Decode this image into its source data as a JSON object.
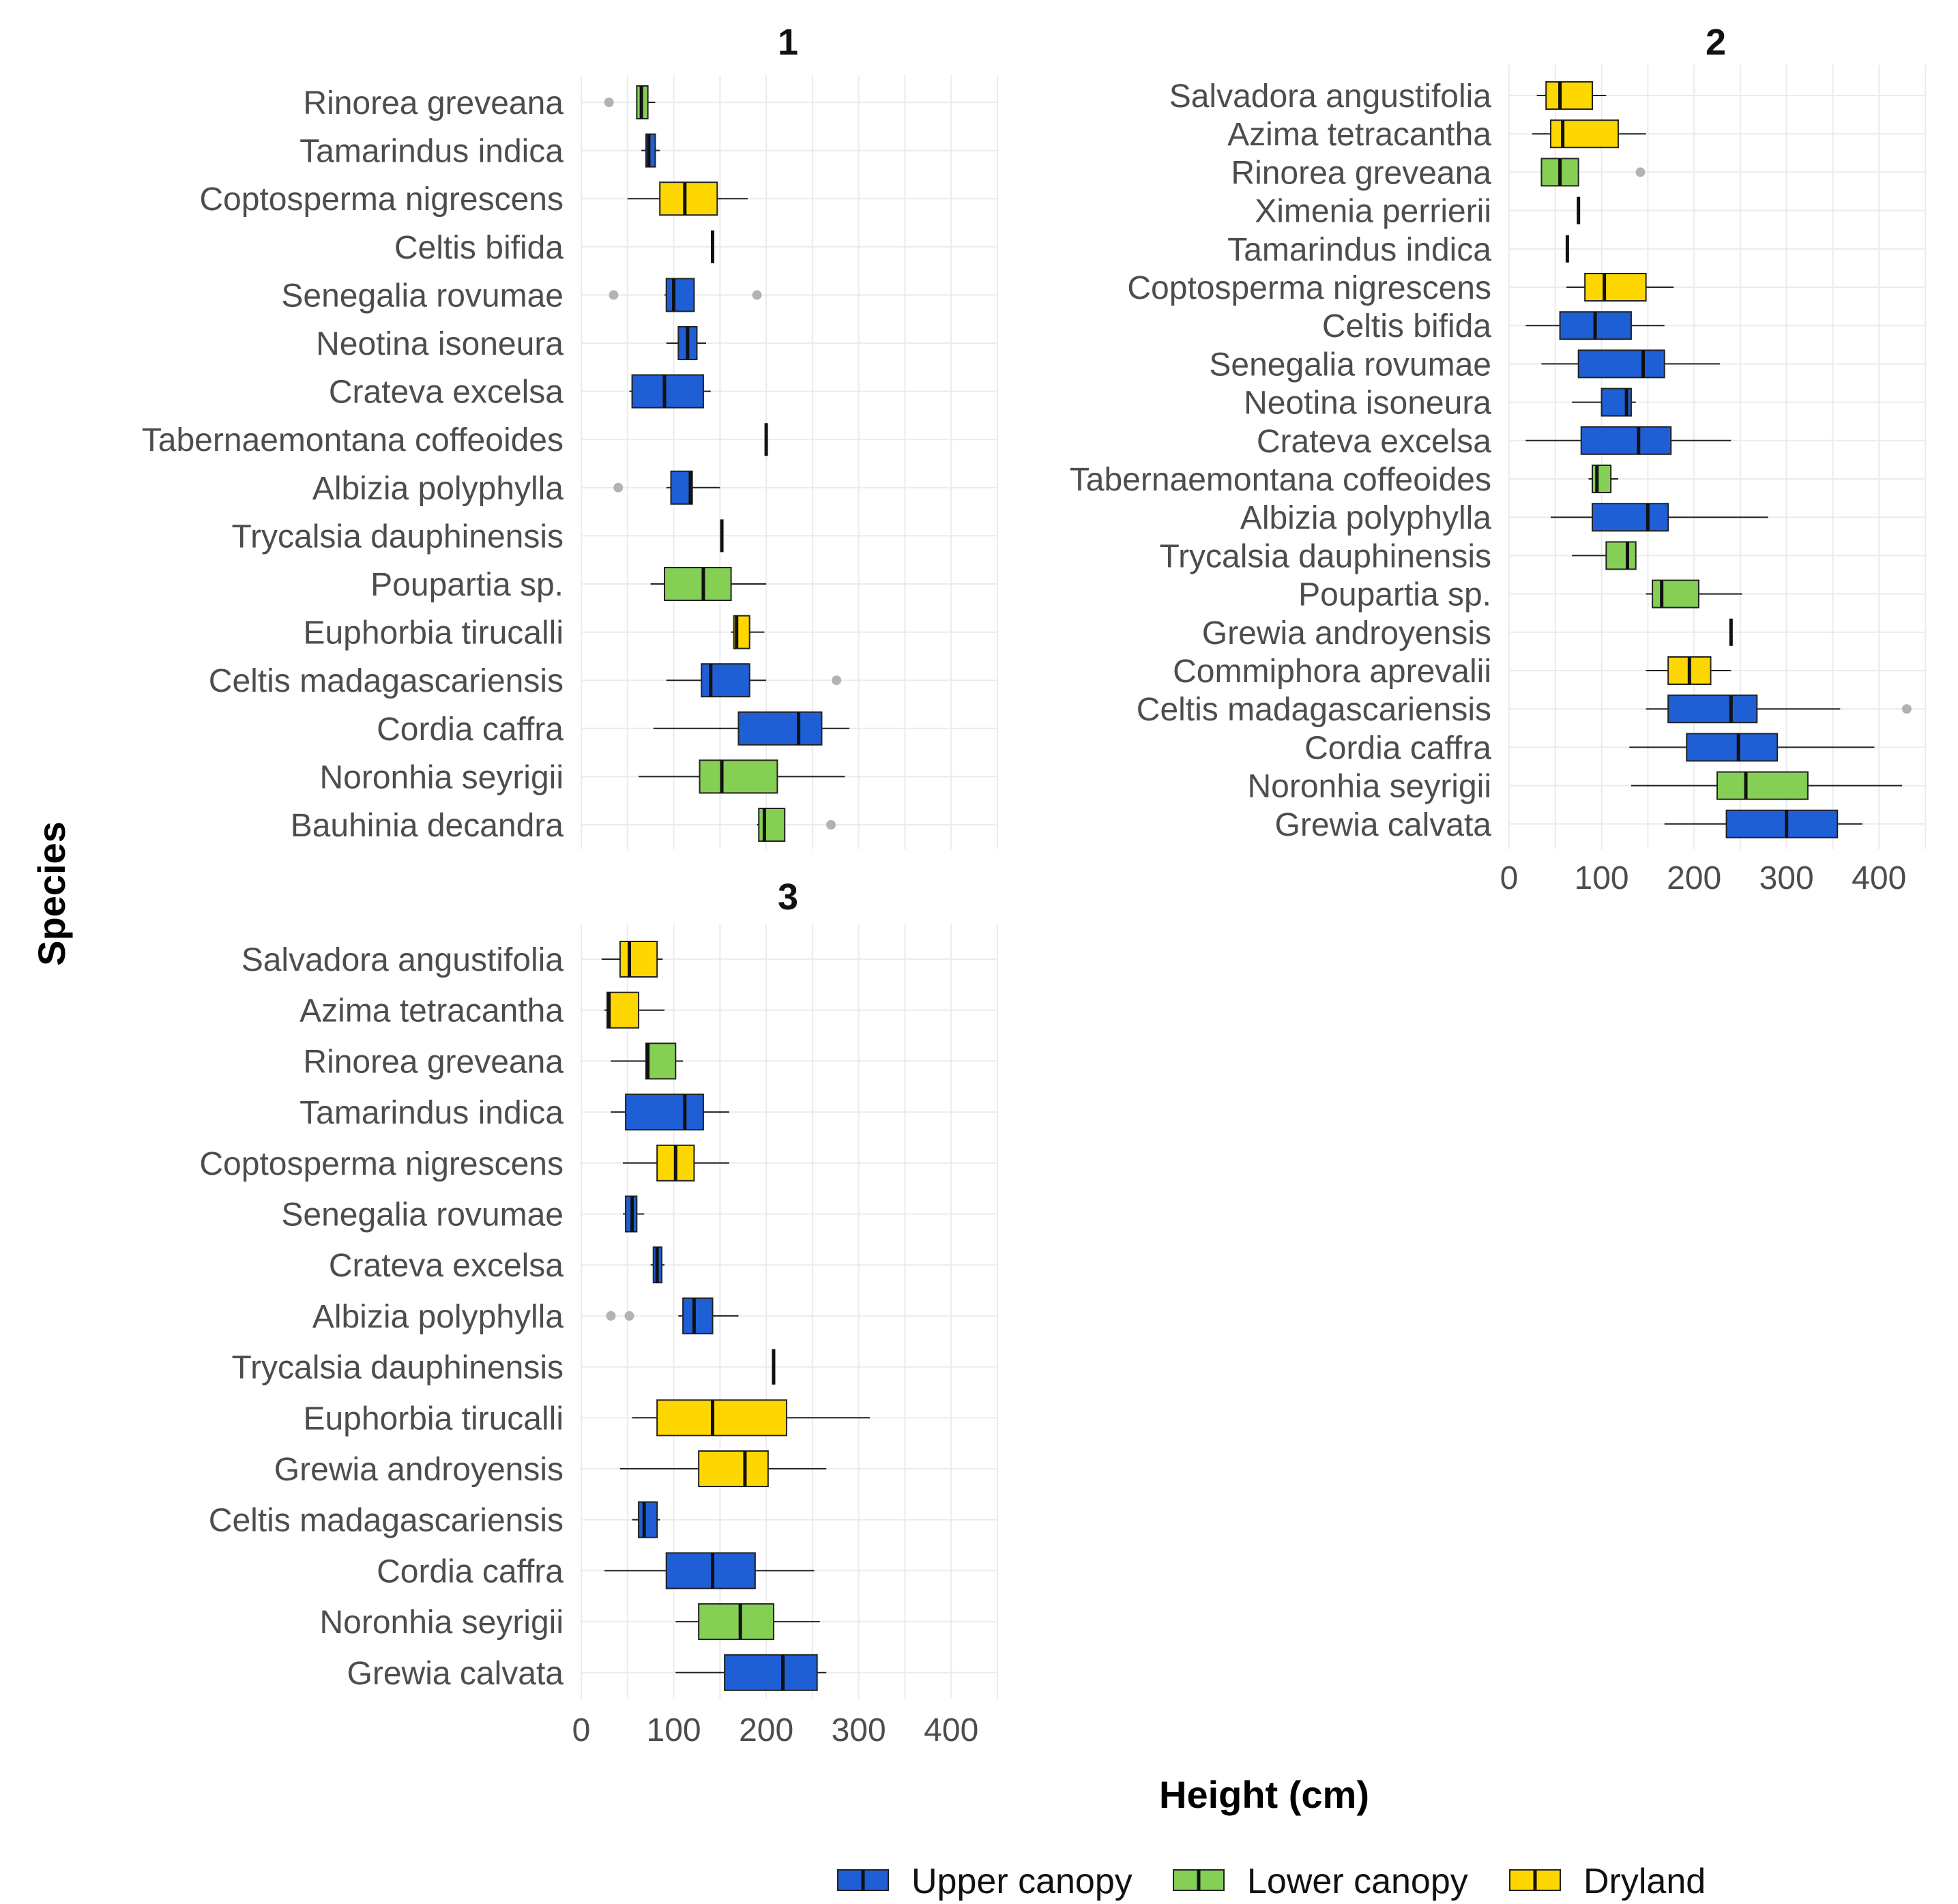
{
  "chart_data": {
    "type": "boxplot",
    "xlabel": "Height (cm)",
    "ylabel": "Species",
    "xlim": [
      0,
      450
    ],
    "x_ticks": [
      0,
      100,
      200,
      300,
      400
    ],
    "legend": {
      "position": "bottom",
      "items": [
        {
          "name": "Upper canopy",
          "color": "#1e5fd6"
        },
        {
          "name": "Lower canopy",
          "color": "#86cf55"
        },
        {
          "name": "Dryland",
          "color": "#fed700"
        }
      ]
    },
    "panels": [
      {
        "title": "1",
        "show_x_ticks": false,
        "series": [
          {
            "species": "Rinorea greveana",
            "group": "Lower canopy",
            "lw": 60,
            "q1": 60,
            "median": 65,
            "q3": 72,
            "uw": 80,
            "outliers": [
              30
            ]
          },
          {
            "species": "Tamarindus indica",
            "group": "Upper canopy",
            "lw": 65,
            "q1": 70,
            "median": 73,
            "q3": 80,
            "uw": 85,
            "outliers": []
          },
          {
            "species": "Coptosperma nigrescens",
            "group": "Dryland",
            "lw": 50,
            "q1": 85,
            "median": 112,
            "q3": 147,
            "uw": 180,
            "outliers": []
          },
          {
            "species": "Celtis bifida",
            "group": "Upper canopy",
            "lw": 142,
            "q1": 142,
            "median": 142,
            "q3": 142,
            "uw": 142,
            "outliers": []
          },
          {
            "species": "Senegalia rovumae",
            "group": "Upper canopy",
            "lw": 90,
            "q1": 92,
            "median": 100,
            "q3": 122,
            "uw": 122,
            "outliers": [
              35,
              190
            ]
          },
          {
            "species": "Neotina isoneura",
            "group": "Upper canopy",
            "lw": 92,
            "q1": 105,
            "median": 115,
            "q3": 125,
            "uw": 135,
            "outliers": []
          },
          {
            "species": "Crateva excelsa",
            "group": "Upper canopy",
            "lw": 52,
            "q1": 55,
            "median": 90,
            "q3": 132,
            "uw": 140,
            "outliers": []
          },
          {
            "species": "Tabernaemontana coffeoides",
            "group": "Upper canopy",
            "lw": 200,
            "q1": 200,
            "median": 200,
            "q3": 200,
            "uw": 200,
            "outliers": []
          },
          {
            "species": "Albizia polyphylla",
            "group": "Upper canopy",
            "lw": 92,
            "q1": 97,
            "median": 118,
            "q3": 120,
            "uw": 150,
            "outliers": [
              40
            ]
          },
          {
            "species": "Trycalsia dauphinensis",
            "group": "Upper canopy",
            "lw": 152,
            "q1": 152,
            "median": 152,
            "q3": 152,
            "uw": 152,
            "outliers": []
          },
          {
            "species": "Poupartia sp.",
            "group": "Lower canopy",
            "lw": 75,
            "q1": 90,
            "median": 132,
            "q3": 162,
            "uw": 200,
            "outliers": []
          },
          {
            "species": "Euphorbia tirucalli",
            "group": "Dryland",
            "lw": 162,
            "q1": 165,
            "median": 168,
            "q3": 182,
            "uw": 198,
            "outliers": []
          },
          {
            "species": "Celtis madagascariensis",
            "group": "Upper canopy",
            "lw": 92,
            "q1": 130,
            "median": 140,
            "q3": 182,
            "uw": 200,
            "outliers": [
              276
            ]
          },
          {
            "species": "Cordia caffra",
            "group": "Upper canopy",
            "lw": 78,
            "q1": 170,
            "median": 235,
            "q3": 260,
            "uw": 290,
            "outliers": []
          },
          {
            "species": "Noronhia seyrigii",
            "group": "Lower canopy",
            "lw": 62,
            "q1": 128,
            "median": 152,
            "q3": 212,
            "uw": 285,
            "outliers": []
          },
          {
            "species": "Bauhinia decandra",
            "group": "Lower canopy",
            "lw": 190,
            "q1": 192,
            "median": 198,
            "q3": 220,
            "uw": 220,
            "outliers": [
              270
            ]
          }
        ]
      },
      {
        "title": "2",
        "show_x_ticks": true,
        "series": [
          {
            "species": "Salvadora angustifolia",
            "group": "Dryland",
            "lw": 30,
            "q1": 40,
            "median": 55,
            "q3": 90,
            "uw": 105,
            "outliers": []
          },
          {
            "species": "Azima tetracantha",
            "group": "Dryland",
            "lw": 25,
            "q1": 45,
            "median": 58,
            "q3": 118,
            "uw": 148,
            "outliers": []
          },
          {
            "species": "Rinorea greveana",
            "group": "Lower canopy",
            "lw": 35,
            "q1": 35,
            "median": 55,
            "q3": 75,
            "uw": 75,
            "outliers": [
              142
            ]
          },
          {
            "species": "Ximenia perrierii",
            "group": "Dryland",
            "lw": 75,
            "q1": 75,
            "median": 75,
            "q3": 75,
            "uw": 75,
            "outliers": []
          },
          {
            "species": "Tamarindus indica",
            "group": "Upper canopy",
            "lw": 63,
            "q1": 63,
            "median": 63,
            "q3": 63,
            "uw": 63,
            "outliers": []
          },
          {
            "species": "Coptosperma nigrescens",
            "group": "Dryland",
            "lw": 62,
            "q1": 82,
            "median": 103,
            "q3": 148,
            "uw": 178,
            "outliers": []
          },
          {
            "species": "Celtis bifida",
            "group": "Upper canopy",
            "lw": 18,
            "q1": 55,
            "median": 93,
            "q3": 132,
            "uw": 168,
            "outliers": []
          },
          {
            "species": "Senegalia rovumae",
            "group": "Upper canopy",
            "lw": 35,
            "q1": 75,
            "median": 145,
            "q3": 168,
            "uw": 228,
            "outliers": []
          },
          {
            "species": "Neotina isoneura",
            "group": "Upper canopy",
            "lw": 68,
            "q1": 100,
            "median": 127,
            "q3": 132,
            "uw": 137,
            "outliers": []
          },
          {
            "species": "Crateva excelsa",
            "group": "Upper canopy",
            "lw": 18,
            "q1": 78,
            "median": 140,
            "q3": 175,
            "uw": 240,
            "outliers": []
          },
          {
            "species": "Tabernaemontana coffeoides",
            "group": "Lower canopy",
            "lw": 86,
            "q1": 90,
            "median": 95,
            "q3": 110,
            "uw": 118,
            "outliers": []
          },
          {
            "species": "Albizia polyphylla",
            "group": "Upper canopy",
            "lw": 45,
            "q1": 90,
            "median": 150,
            "q3": 172,
            "uw": 280,
            "outliers": []
          },
          {
            "species": "Trycalsia dauphinensis",
            "group": "Lower canopy",
            "lw": 68,
            "q1": 105,
            "median": 128,
            "q3": 137,
            "uw": 137,
            "outliers": []
          },
          {
            "species": "Poupartia sp.",
            "group": "Lower canopy",
            "lw": 148,
            "q1": 155,
            "median": 165,
            "q3": 205,
            "uw": 252,
            "outliers": []
          },
          {
            "species": "Grewia androyensis",
            "group": "Dryland",
            "lw": 240,
            "q1": 240,
            "median": 240,
            "q3": 240,
            "uw": 240,
            "outliers": []
          },
          {
            "species": "Commiphora aprevalii",
            "group": "Dryland",
            "lw": 148,
            "q1": 172,
            "median": 195,
            "q3": 218,
            "uw": 240,
            "outliers": []
          },
          {
            "species": "Celtis madagascariensis",
            "group": "Upper canopy",
            "lw": 148,
            "q1": 172,
            "median": 240,
            "q3": 268,
            "uw": 358,
            "outliers": [
              430
            ]
          },
          {
            "species": "Cordia caffra",
            "group": "Upper canopy",
            "lw": 130,
            "q1": 192,
            "median": 248,
            "q3": 290,
            "uw": 395,
            "outliers": []
          },
          {
            "species": "Noronhia seyrigii",
            "group": "Lower canopy",
            "lw": 132,
            "q1": 225,
            "median": 256,
            "q3": 323,
            "uw": 425,
            "outliers": []
          },
          {
            "species": "Grewia calvata",
            "group": "Upper canopy",
            "lw": 168,
            "q1": 235,
            "median": 300,
            "q3": 355,
            "uw": 382,
            "outliers": []
          }
        ]
      },
      {
        "title": "3",
        "show_x_ticks": true,
        "series": [
          {
            "species": "Salvadora angustifolia",
            "group": "Dryland",
            "lw": 22,
            "q1": 42,
            "median": 52,
            "q3": 82,
            "uw": 88,
            "outliers": []
          },
          {
            "species": "Azima tetracantha",
            "group": "Dryland",
            "lw": 25,
            "q1": 28,
            "median": 30,
            "q3": 62,
            "uw": 90,
            "outliers": []
          },
          {
            "species": "Rinorea greveana",
            "group": "Lower canopy",
            "lw": 32,
            "q1": 70,
            "median": 72,
            "q3": 102,
            "uw": 110,
            "outliers": []
          },
          {
            "species": "Tamarindus indica",
            "group": "Upper canopy",
            "lw": 32,
            "q1": 48,
            "median": 112,
            "q3": 132,
            "uw": 160,
            "outliers": []
          },
          {
            "species": "Coptosperma nigrescens",
            "group": "Dryland",
            "lw": 45,
            "q1": 82,
            "median": 102,
            "q3": 122,
            "uw": 160,
            "outliers": []
          },
          {
            "species": "Senegalia rovumae",
            "group": "Upper canopy",
            "lw": 45,
            "q1": 48,
            "median": 55,
            "q3": 60,
            "uw": 68,
            "outliers": []
          },
          {
            "species": "Crateva excelsa",
            "group": "Upper canopy",
            "lw": 75,
            "q1": 78,
            "median": 82,
            "q3": 87,
            "uw": 90,
            "outliers": []
          },
          {
            "species": "Albizia polyphylla",
            "group": "Upper canopy",
            "lw": 105,
            "q1": 110,
            "median": 122,
            "q3": 142,
            "uw": 170,
            "outliers": [
              32,
              52
            ]
          },
          {
            "species": "Trycalsia dauphinensis",
            "group": "Upper canopy",
            "lw": 208,
            "q1": 208,
            "median": 208,
            "q3": 208,
            "uw": 208,
            "outliers": []
          },
          {
            "species": "Euphorbia tirucalli",
            "group": "Dryland",
            "lw": 55,
            "q1": 82,
            "median": 142,
            "q3": 222,
            "uw": 312,
            "outliers": []
          },
          {
            "species": "Grewia androyensis",
            "group": "Dryland",
            "lw": 42,
            "q1": 127,
            "median": 177,
            "q3": 202,
            "uw": 265,
            "outliers": []
          },
          {
            "species": "Celtis madagascariensis",
            "group": "Upper canopy",
            "lw": 55,
            "q1": 62,
            "median": 68,
            "q3": 82,
            "uw": 85,
            "outliers": []
          },
          {
            "species": "Cordia caffra",
            "group": "Upper canopy",
            "lw": 25,
            "q1": 92,
            "median": 142,
            "q3": 188,
            "uw": 252,
            "outliers": []
          },
          {
            "species": "Noronhia seyrigii",
            "group": "Lower canopy",
            "lw": 102,
            "q1": 127,
            "median": 172,
            "q3": 208,
            "uw": 258,
            "outliers": []
          },
          {
            "species": "Grewia calvata",
            "group": "Upper canopy",
            "lw": 102,
            "q1": 155,
            "median": 218,
            "q3": 255,
            "uw": 265,
            "outliers": []
          }
        ]
      }
    ]
  }
}
